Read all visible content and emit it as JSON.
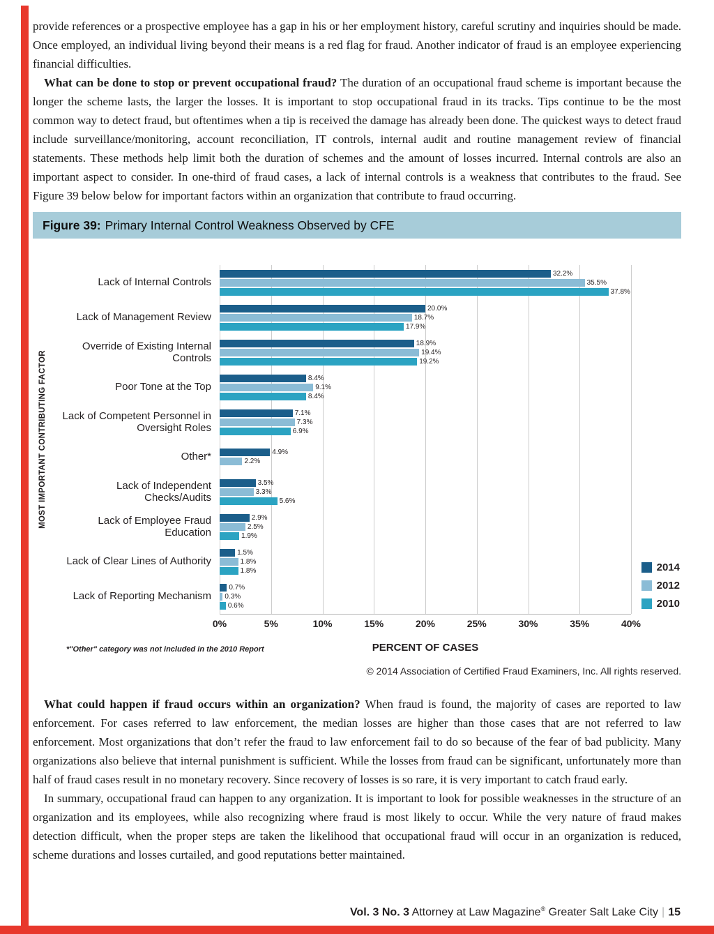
{
  "page": {
    "accent_red": "#e8382c",
    "figure_header_bg": "#a7ccd9"
  },
  "paragraphs": {
    "p1": "provide references or a prospective employee has a gap in his or her employment history, careful scrutiny and inquiries should be made. Once employed, an individual living beyond their means is a red flag for fraud. Another indicator of fraud is an employee experiencing financial difficulties.",
    "p2_bold": "What can be done to stop or prevent occupational fraud?",
    "p2_rest": " The duration of an occupational fraud scheme is important because the longer the scheme lasts, the larger the losses. It is important to stop occupational fraud in its tracks. Tips continue to be the most common way to detect fraud, but oftentimes when a tip is received the damage has already been done. The quickest ways to detect fraud include surveillance/monitoring, account reconciliation, IT controls, internal audit and routine management review of financial statements. These methods help limit both the duration of schemes and the amount of losses incurred. Internal controls are also an important aspect to consider. In one-third of fraud cases, a lack of internal controls is a weakness that contributes to the fraud. See Figure 39 below below for important factors within an organization that contribute to fraud occurring.",
    "p3_bold": "What could happen if fraud occurs within an organization?",
    "p3_rest": " When fraud is found, the majority of cases are reported to law enforcement. For cases referred to law enforcement, the median losses are higher than those cases that are not referred to law enforcement. Most organizations that don’t refer the fraud to law enforcement fail to do so because of the fear of bad publicity. Many organizations also believe that internal punishment is sufficient. While the losses from fraud can be significant, unfortunately more than half of fraud cases result in no monetary recovery. Since recovery of losses is so rare, it is very important to catch fraud early.",
    "p4": "In summary, occupational fraud can happen to any organization.  It is important to look for possible weaknesses in the structure of an organization and its employees, while also recognizing where fraud is most likely to occur. While the very nature of fraud makes detection difficult, when the proper steps are taken the likelihood that occupational fraud will occur in an organization is reduced, scheme durations and losses curtailed, and good reputations better maintained."
  },
  "figure": {
    "label": "Figure 39:",
    "title": "Primary Internal Control Weakness Observed by CFE",
    "footnote": "*\"Other\" category was not included in the 2010 Report",
    "copyright": "© 2014 Association of Certified Fraud Examiners, Inc. All rights reserved."
  },
  "chart_data": {
    "type": "bar",
    "orientation": "horizontal",
    "title": "Figure 39: Primary Internal Control Weakness Observed by CFE",
    "xlabel": "PERCENT OF CASES",
    "ylabel": "MOST IMPORTANT CONTRIBUTING FACTOR",
    "xlim": [
      0,
      40
    ],
    "xticks": [
      "0%",
      "5%",
      "10%",
      "15%",
      "20%",
      "25%",
      "30%",
      "35%",
      "40%"
    ],
    "grid": true,
    "legend_position": "bottom-right",
    "categories": [
      "Lack of Internal Controls",
      "Lack of Management Review",
      "Override of Existing Internal Controls",
      "Poor Tone at the Top",
      "Lack of Competent Personnel in Oversight Roles",
      "Other*",
      "Lack of Independent Checks/Audits",
      "Lack of Employee Fraud Education",
      "Lack of Clear Lines of Authority",
      "Lack of Reporting Mechanism"
    ],
    "series": [
      {
        "name": "2014",
        "color": "#1b5e8a",
        "values": [
          32.2,
          20.0,
          18.9,
          8.4,
          7.1,
          4.9,
          3.5,
          2.9,
          1.5,
          0.7
        ]
      },
      {
        "name": "2012",
        "color": "#8bbcd6",
        "values": [
          35.5,
          18.7,
          19.4,
          9.1,
          7.3,
          2.2,
          3.3,
          2.5,
          1.8,
          0.3
        ]
      },
      {
        "name": "2010",
        "color": "#2ba3c2",
        "values": [
          37.8,
          17.9,
          19.2,
          8.4,
          6.9,
          null,
          5.6,
          1.9,
          1.8,
          0.6
        ]
      }
    ],
    "footnote": "*\"Other\" category was not included in the 2010 Report",
    "source": "© 2014 Association of Certified Fraud Examiners, Inc. All rights reserved."
  },
  "footer": {
    "vol": "Vol. 3 No. 3",
    "magazine": " Attorney at Law Magazine",
    "reg": "®",
    "city": "  Greater Salt Lake City",
    "sep": "|",
    "page_number": "15"
  }
}
